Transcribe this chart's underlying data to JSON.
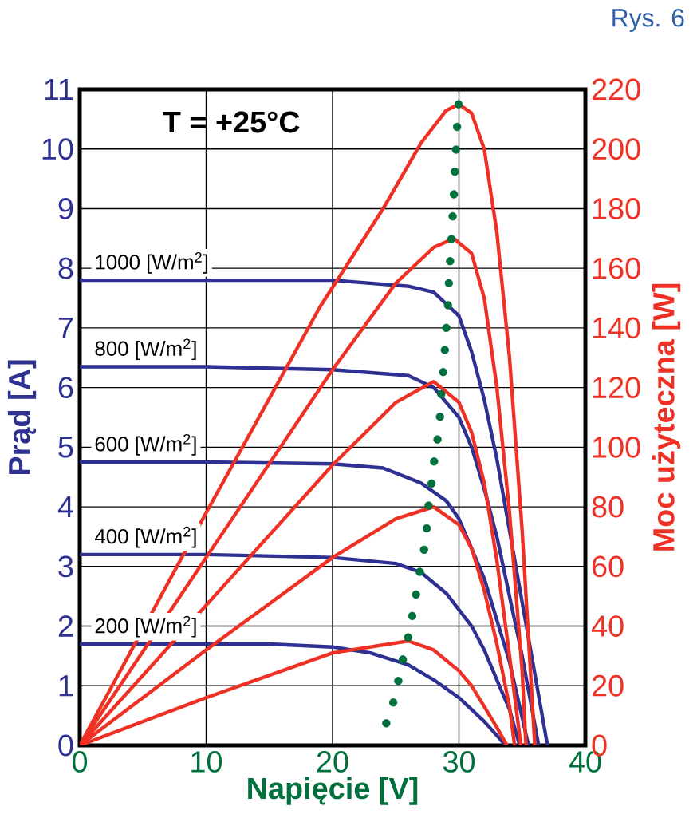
{
  "chart_data": {
    "type": "line",
    "xlabel": "Napięcie [V]",
    "ylabel": "Prąd [A]",
    "y2label": "Moc użyteczna [W]",
    "annotations": [
      "T = +25°C",
      "Rys. 6"
    ],
    "xlim": [
      0,
      40
    ],
    "xticks": [
      0,
      10,
      20,
      30,
      40
    ],
    "ylim": [
      0,
      11
    ],
    "yticks": [
      0,
      1,
      2,
      3,
      4,
      5,
      6,
      7,
      8,
      9,
      10,
      11
    ],
    "y2lim": [
      0,
      220
    ],
    "y2ticks": [
      0,
      20,
      40,
      60,
      80,
      100,
      120,
      140,
      160,
      180,
      200,
      220
    ],
    "grid": true,
    "series": [
      {
        "name": "1000 [W/m$^{2}$]",
        "color": "#2e3192",
        "x": [
          0,
          10,
          20,
          26,
          28,
          30,
          31,
          32,
          33,
          34,
          35,
          36,
          37
        ],
        "values": [
          7.8,
          7.8,
          7.8,
          7.7,
          7.6,
          7.2,
          6.6,
          5.8,
          4.8,
          3.6,
          2.4,
          1.2,
          0
        ]
      },
      {
        "name": "800 [W/m$^{2}$]",
        "color": "#2e3192",
        "x": [
          0,
          10,
          20,
          26,
          28,
          30,
          31,
          32,
          33,
          34,
          35,
          36.3
        ],
        "values": [
          6.35,
          6.35,
          6.3,
          6.2,
          6.0,
          5.5,
          5.0,
          4.3,
          3.5,
          2.5,
          1.5,
          0
        ]
      },
      {
        "name": "600 [W/m$^{2}$]",
        "color": "#2e3192",
        "x": [
          0,
          10,
          20,
          24,
          27,
          29,
          30,
          31,
          32,
          33,
          34,
          35.5
        ],
        "values": [
          4.75,
          4.75,
          4.72,
          4.65,
          4.4,
          4.1,
          3.8,
          3.3,
          2.8,
          2.1,
          1.4,
          0
        ]
      },
      {
        "name": "400 [W/m$^{2}$]",
        "color": "#2e3192",
        "x": [
          0,
          10,
          20,
          25,
          27,
          29,
          31,
          32,
          33,
          34,
          34.8
        ],
        "values": [
          3.2,
          3.2,
          3.15,
          3.05,
          2.9,
          2.55,
          2.0,
          1.6,
          1.1,
          0.6,
          0
        ]
      },
      {
        "name": "200 [W/m$^{2}$]",
        "color": "#2e3192",
        "x": [
          0,
          15,
          20,
          23,
          26,
          28,
          30,
          32,
          33.7
        ],
        "values": [
          1.7,
          1.7,
          1.65,
          1.55,
          1.35,
          1.1,
          0.8,
          0.4,
          0
        ]
      },
      {
        "color": "#ee3124",
        "axis": "y2",
        "x": [
          0,
          10,
          19,
          24,
          27,
          29,
          30,
          31,
          32,
          33,
          34,
          35,
          36
        ],
        "values": [
          0,
          78,
          147,
          180,
          202,
          213,
          215,
          212,
          200,
          172,
          130,
          72,
          0
        ]
      },
      {
        "color": "#ee3124",
        "axis": "y2",
        "x": [
          0,
          10,
          20,
          25,
          28,
          29.6,
          31,
          32,
          33,
          34,
          35,
          35.3
        ],
        "values": [
          0,
          63,
          126,
          155,
          167,
          170,
          165,
          150,
          120,
          78,
          25,
          0
        ]
      },
      {
        "color": "#ee3124",
        "axis": "y2",
        "x": [
          0,
          10,
          20,
          25,
          28,
          30,
          31,
          32,
          33,
          34,
          34.9
        ],
        "values": [
          0,
          47,
          94,
          115,
          122,
          115,
          105,
          88,
          62,
          30,
          0
        ]
      },
      {
        "color": "#ee3124",
        "axis": "y2",
        "x": [
          0,
          10,
          20,
          25,
          28,
          30,
          31,
          32,
          33,
          34,
          34.4
        ],
        "values": [
          0,
          32,
          63,
          76,
          80,
          74,
          66,
          52,
          34,
          13,
          0
        ]
      },
      {
        "color": "#ee3124",
        "axis": "y2",
        "x": [
          0,
          10,
          20,
          26,
          28,
          30,
          31,
          32,
          33,
          33.8
        ],
        "values": [
          0,
          16,
          31,
          35,
          32,
          25,
          20,
          13,
          6,
          0
        ]
      },
      {
        "color": "#00703c",
        "type": "scatter",
        "marker": "circle",
        "x": [
          24.25,
          24.8,
          25.2,
          25.56,
          25.98,
          26.3,
          26.6,
          26.9,
          27.24,
          27.45,
          27.6,
          27.83,
          28.03,
          28.3,
          28.5,
          28.6,
          28.75,
          28.88,
          29.0,
          29.13,
          29.2,
          29.3,
          29.4,
          29.5,
          29.6,
          29.67,
          29.76,
          29.85,
          29.97
        ],
        "values": [
          0.37,
          0.72,
          1.08,
          1.44,
          1.81,
          2.17,
          2.53,
          2.91,
          3.28,
          3.64,
          4.02,
          4.39,
          4.76,
          5.13,
          5.51,
          5.89,
          6.26,
          6.63,
          7.0,
          7.38,
          7.75,
          8.12,
          8.49,
          8.87,
          9.24,
          9.62,
          9.99,
          10.37,
          10.75
        ]
      }
    ]
  }
}
